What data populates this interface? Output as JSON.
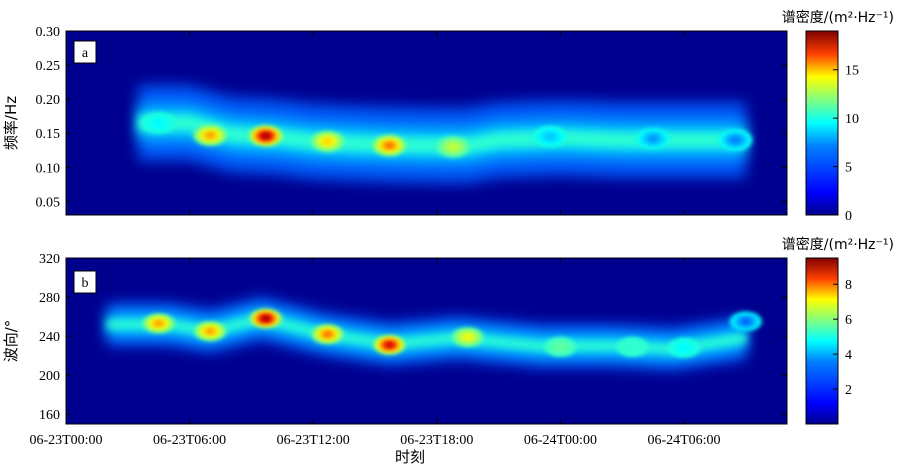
{
  "chart_data": [
    {
      "type": "heatmap",
      "panel_label": "a",
      "ylabel": "频率/Hz",
      "ylim": [
        0.03,
        0.3
      ],
      "yticks": [
        "0.05",
        "0.10",
        "0.15",
        "0.20",
        "0.25",
        "0.30"
      ],
      "colorbar_title": "谱密度/(m²·Hz⁻¹)",
      "colorbar_range": [
        0,
        19
      ],
      "colorbar_ticks": [
        "0",
        "5",
        "10",
        "15"
      ],
      "ridge_x_hours": [
        3.5,
        6,
        8,
        10,
        12,
        14,
        16,
        18,
        19.5,
        21,
        24,
        27,
        30,
        33
      ],
      "ridge_y": [
        0.165,
        0.165,
        0.148,
        0.145,
        0.138,
        0.135,
        0.133,
        0.132,
        0.132,
        0.14,
        0.143,
        0.14,
        0.14,
        0.14
      ],
      "peaks": [
        {
          "x": 4.5,
          "y": 0.165,
          "value": 7
        },
        {
          "x": 7.0,
          "y": 0.147,
          "value": 14
        },
        {
          "x": 9.7,
          "y": 0.146,
          "value": 19
        },
        {
          "x": 12.7,
          "y": 0.138,
          "value": 13
        },
        {
          "x": 15.7,
          "y": 0.132,
          "value": 15
        },
        {
          "x": 18.8,
          "y": 0.13,
          "value": 11
        },
        {
          "x": 23.5,
          "y": 0.145,
          "value": 6
        },
        {
          "x": 28.5,
          "y": 0.142,
          "value": 5
        },
        {
          "x": 32.5,
          "y": 0.14,
          "value": 4.5
        }
      ]
    },
    {
      "type": "heatmap",
      "panel_label": "b",
      "ylabel": "波向/°",
      "ylim": [
        150,
        320
      ],
      "yticks": [
        "160",
        "200",
        "240",
        "280",
        "320"
      ],
      "colorbar_title": "谱密度/(m²·Hz⁻¹)",
      "colorbar_range": [
        0,
        9.5
      ],
      "colorbar_ticks": [
        "2",
        "4",
        "6",
        "8"
      ],
      "ridge_x_hours": [
        2,
        5,
        7,
        9.5,
        12.5,
        15.7,
        19,
        23,
        26.5,
        29.5,
        33
      ],
      "ridge_y": [
        252,
        252,
        245,
        258,
        242,
        232,
        238,
        230,
        230,
        227,
        238
      ],
      "peaks": [
        {
          "x": 4.5,
          "y": 253,
          "value": 7
        },
        {
          "x": 7.0,
          "y": 245,
          "value": 7
        },
        {
          "x": 9.7,
          "y": 258,
          "value": 9.5
        },
        {
          "x": 12.7,
          "y": 242,
          "value": 7.5
        },
        {
          "x": 15.7,
          "y": 231,
          "value": 9
        },
        {
          "x": 19.5,
          "y": 239,
          "value": 6
        },
        {
          "x": 24.0,
          "y": 229,
          "value": 4.5
        },
        {
          "x": 27.5,
          "y": 229,
          "value": 4
        },
        {
          "x": 30.0,
          "y": 228,
          "value": 3.5
        },
        {
          "x": 33.0,
          "y": 255,
          "value": 2
        }
      ]
    }
  ],
  "xlabel": "时刻",
  "xlim_hours": [
    0,
    35
  ],
  "xticks": [
    "06-23T00:00",
    "06-23T06:00",
    "06-23T12:00",
    "06-23T18:00",
    "06-24T00:00",
    "06-24T06:00"
  ],
  "colormap": [
    "#00008f",
    "#0000ff",
    "#0080ff",
    "#00ffff",
    "#80ff80",
    "#ffff00",
    "#ff8000",
    "#ff0000",
    "#800000"
  ]
}
